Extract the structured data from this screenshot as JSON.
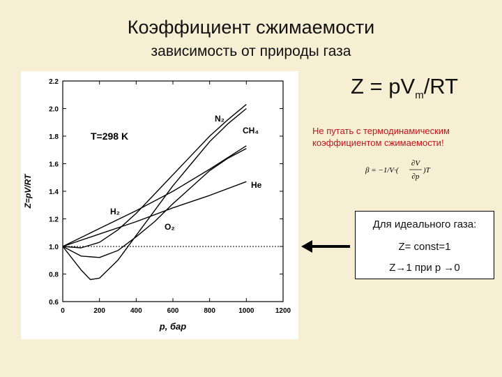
{
  "slide": {
    "title": "Коэффициент сжимаемости",
    "subtitle": "зависимость от природы газа",
    "formula": {
      "lhs": "Z = pV",
      "sub": "m",
      "rhs": "/RT"
    },
    "warning_line1": "Не путать с термодинамическим",
    "warning_line2": "коэффициентом сжимаемости!",
    "beta_formula": {
      "lhs": "β = −1/V·(",
      "num": "∂V",
      "den": "∂p",
      "rhs": ")T"
    },
    "ideal_box": {
      "title": "Для идеального газа:",
      "line1": "Z= const=1",
      "line2": "Z→1 при p →0"
    },
    "colors": {
      "background": "#f6efd3",
      "warning": "#c0151c",
      "chart_panel": "#ffffff",
      "curves": "#000000"
    }
  },
  "chart_data": {
    "type": "line",
    "xlabel": "p, бар",
    "ylabel": "Z=pV/RT",
    "xlim": [
      0,
      1200
    ],
    "ylim": [
      0.6,
      2.2
    ],
    "x_ticks": [
      0,
      200,
      400,
      600,
      800,
      1000,
      1200
    ],
    "y_ticks": [
      0.6,
      0.8,
      1.0,
      1.2,
      1.4,
      1.6,
      1.8,
      2.0,
      2.2
    ],
    "x_tick_labels": [
      "0",
      "200",
      "400",
      "600",
      "800",
      "1000",
      "1200"
    ],
    "y_tick_labels": [
      "0.6",
      "0.8",
      "1.0",
      "1.2",
      "1.4",
      "1.6",
      "1.8",
      "2.0",
      "2.2"
    ],
    "temperature_annotation": "T=298 K",
    "reference_line": {
      "y": 1.0,
      "style": "dashed"
    },
    "series": [
      {
        "name": "N₂",
        "x": [
          0,
          100,
          200,
          300,
          400,
          500,
          600,
          700,
          800,
          900,
          1000
        ],
        "y": [
          1.0,
          0.99,
          1.03,
          1.12,
          1.24,
          1.38,
          1.52,
          1.66,
          1.8,
          1.92,
          2.03
        ]
      },
      {
        "name": "CH₄",
        "x": [
          0,
          100,
          150,
          200,
          300,
          400,
          500,
          600,
          700,
          800,
          900,
          1000
        ],
        "y": [
          1.0,
          0.83,
          0.76,
          0.77,
          0.9,
          1.08,
          1.26,
          1.44,
          1.6,
          1.76,
          1.89,
          2.0
        ]
      },
      {
        "name": "He",
        "x": [
          0,
          200,
          400,
          600,
          800,
          1000
        ],
        "y": [
          1.0,
          1.09,
          1.18,
          1.28,
          1.37,
          1.47
        ]
      },
      {
        "name": "H₂",
        "x": [
          0,
          200,
          400,
          600,
          800,
          1000
        ],
        "y": [
          1.0,
          1.13,
          1.26,
          1.4,
          1.56,
          1.73
        ]
      },
      {
        "name": "O₂",
        "x": [
          0,
          100,
          200,
          300,
          400,
          500,
          600,
          700,
          800,
          900,
          1000
        ],
        "y": [
          1.0,
          0.93,
          0.92,
          0.97,
          1.07,
          1.18,
          1.31,
          1.43,
          1.55,
          1.64,
          1.71
        ]
      }
    ],
    "series_labels": [
      "N₂",
      "CH₄",
      "He",
      "H₂",
      "O₂"
    ]
  }
}
